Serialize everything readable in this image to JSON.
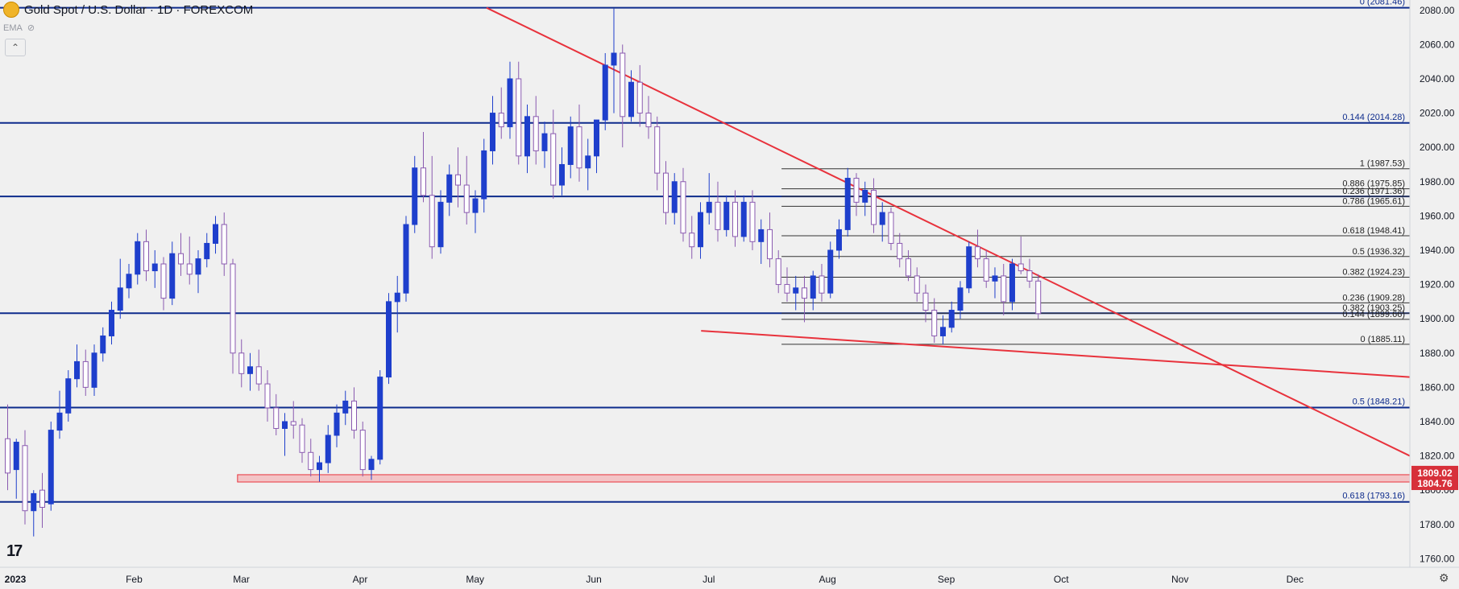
{
  "header": {
    "title": "Gold Spot / U.S. Dollar · 1D · FOREXCOM",
    "indicator": "EMA",
    "collapse_icon": "chevron-up-icon"
  },
  "colors": {
    "background": "#f0f0f0",
    "level_line": "#0d2b8c",
    "fib_line": "#333333",
    "trend_line": "#e8323c",
    "candle_up": "#1e3fcc",
    "candle_down": "#8a5ab0",
    "zone_fill": "#f4b9bb",
    "price_tag": "#d7303a"
  },
  "chart_data": {
    "type": "candlestick",
    "symbol": "XAU/USD",
    "interval": "1D",
    "ylim": [
      1755,
      2086
    ],
    "y_ticks": [
      1760,
      1780,
      1800,
      1820,
      1840,
      1860,
      1880,
      1900,
      1920,
      1940,
      1960,
      1980,
      2000,
      2020,
      2040,
      2060,
      2080
    ],
    "y_tick_labels": [
      "1760.00",
      "1780.00",
      "1800.00",
      "1820.00",
      "1840.00",
      "1860.00",
      "1880.00",
      "1900.00",
      "1920.00",
      "1940.00",
      "1960.00",
      "1980.00",
      "2000.00",
      "2020.00",
      "2040.00",
      "2060.00",
      "2080.00"
    ],
    "x_ticks": [
      {
        "label": "2023",
        "date": "2023-01-01"
      },
      {
        "label": "Feb",
        "date": "2023-02-01"
      },
      {
        "label": "Mar",
        "date": "2023-03-01"
      },
      {
        "label": "Apr",
        "date": "2023-04-01"
      },
      {
        "label": "May",
        "date": "2023-05-01"
      },
      {
        "label": "Jun",
        "date": "2023-06-01"
      },
      {
        "label": "Jul",
        "date": "2023-07-01"
      },
      {
        "label": "Aug",
        "date": "2023-08-01"
      },
      {
        "label": "Sep",
        "date": "2023-09-01"
      },
      {
        "label": "Oct",
        "date": "2023-10-01"
      },
      {
        "label": "Nov",
        "date": "2023-11-01"
      },
      {
        "label": "Dec",
        "date": "2023-12-01"
      }
    ],
    "x_range": [
      "2022-12-28",
      "2023-12-31"
    ],
    "long_fib_levels": [
      {
        "label": "0 (2081.46)",
        "value": 2081.46
      },
      {
        "label": "0.144 (2014.28)",
        "value": 2014.28
      },
      {
        "label": "0.5 (1848.21)",
        "value": 1848.21
      },
      {
        "label": "0.618 (1793.16)",
        "value": 1793.16
      }
    ],
    "unlabeled_levels": [
      1971.36,
      1903.25
    ],
    "short_fib": {
      "start_date": "2023-07-20",
      "levels": [
        {
          "label": "1 (1987.53)",
          "value": 1987.53
        },
        {
          "label": "0.886 (1975.85)",
          "value": 1975.85
        },
        {
          "label": "0.236 (1971.36)",
          "value": 1971.36
        },
        {
          "label": "0.786 (1965.61)",
          "value": 1965.61
        },
        {
          "label": "0.618 (1948.41)",
          "value": 1948.41
        },
        {
          "label": "0.5 (1936.32)",
          "value": 1936.32
        },
        {
          "label": "0.382 (1924.23)",
          "value": 1924.23
        },
        {
          "label": "0.236 (1909.28)",
          "value": 1909.28
        },
        {
          "label": "0.382 (1903.25)",
          "value": 1903.25
        },
        {
          "label": "0.144 (1899.66)",
          "value": 1899.66
        },
        {
          "label": "0 (1885.11)",
          "value": 1885.11
        }
      ]
    },
    "zone": {
      "start_date": "2023-02-28",
      "top": 1809.02,
      "bottom": 1804.76
    },
    "price_tags": [
      {
        "label": "1809.02",
        "value": 1809.02
      },
      {
        "label": "1804.76",
        "value": 1804.76
      }
    ],
    "trendlines": [
      {
        "from": {
          "date": "2023-05-04",
          "value": 2081.46
        },
        "to": {
          "date": "2023-12-31",
          "value": 1820
        }
      },
      {
        "from": {
          "date": "2023-06-29",
          "value": 1893
        },
        "to": {
          "date": "2023-12-31",
          "value": 1866
        }
      }
    ],
    "candles": [
      [
        1830,
        1850,
        1800,
        1810
      ],
      [
        1812,
        1830,
        1795,
        1828
      ],
      [
        1826,
        1835,
        1780,
        1788
      ],
      [
        1788,
        1800,
        1773,
        1798
      ],
      [
        1800,
        1810,
        1778,
        1790
      ],
      [
        1792,
        1840,
        1788,
        1835
      ],
      [
        1835,
        1858,
        1830,
        1845
      ],
      [
        1845,
        1870,
        1840,
        1865
      ],
      [
        1865,
        1885,
        1860,
        1875
      ],
      [
        1875,
        1882,
        1855,
        1860
      ],
      [
        1860,
        1885,
        1855,
        1880
      ],
      [
        1880,
        1895,
        1875,
        1890
      ],
      [
        1890,
        1910,
        1885,
        1905
      ],
      [
        1905,
        1935,
        1900,
        1918
      ],
      [
        1918,
        1932,
        1912,
        1926
      ],
      [
        1926,
        1950,
        1920,
        1945
      ],
      [
        1945,
        1952,
        1922,
        1928
      ],
      [
        1928,
        1940,
        1918,
        1932
      ],
      [
        1932,
        1936,
        1905,
        1912
      ],
      [
        1912,
        1945,
        1908,
        1938
      ],
      [
        1938,
        1950,
        1925,
        1932
      ],
      [
        1932,
        1948,
        1920,
        1926
      ],
      [
        1926,
        1940,
        1915,
        1935
      ],
      [
        1935,
        1950,
        1930,
        1944
      ],
      [
        1944,
        1960,
        1938,
        1955
      ],
      [
        1955,
        1962,
        1925,
        1932
      ],
      [
        1932,
        1935,
        1868,
        1880
      ],
      [
        1880,
        1888,
        1860,
        1868
      ],
      [
        1868,
        1880,
        1858,
        1872
      ],
      [
        1872,
        1882,
        1858,
        1862
      ],
      [
        1862,
        1870,
        1840,
        1848
      ],
      [
        1848,
        1856,
        1832,
        1836
      ],
      [
        1836,
        1845,
        1820,
        1840
      ],
      [
        1840,
        1852,
        1830,
        1838
      ],
      [
        1838,
        1842,
        1816,
        1822
      ],
      [
        1822,
        1830,
        1808,
        1812
      ],
      [
        1812,
        1820,
        1805,
        1816
      ],
      [
        1816,
        1838,
        1810,
        1832
      ],
      [
        1832,
        1850,
        1825,
        1845
      ],
      [
        1845,
        1858,
        1838,
        1852
      ],
      [
        1852,
        1860,
        1830,
        1835
      ],
      [
        1835,
        1840,
        1808,
        1812
      ],
      [
        1812,
        1820,
        1806,
        1818
      ],
      [
        1818,
        1870,
        1815,
        1866
      ],
      [
        1866,
        1915,
        1862,
        1910
      ],
      [
        1910,
        1925,
        1892,
        1915
      ],
      [
        1915,
        1960,
        1910,
        1955
      ],
      [
        1955,
        1995,
        1950,
        1988
      ],
      [
        1988,
        2009,
        1968,
        1972
      ],
      [
        1972,
        1995,
        1935,
        1942
      ],
      [
        1942,
        1975,
        1938,
        1968
      ],
      [
        1968,
        1990,
        1960,
        1984
      ],
      [
        1984,
        2000,
        1965,
        1978
      ],
      [
        1978,
        1995,
        1955,
        1962
      ],
      [
        1962,
        1975,
        1950,
        1970
      ],
      [
        1970,
        2005,
        1962,
        1998
      ],
      [
        1998,
        2030,
        1990,
        2020
      ],
      [
        2020,
        2035,
        2005,
        2012
      ],
      [
        2012,
        2050,
        2005,
        2040
      ],
      [
        2040,
        2050,
        1990,
        1995
      ],
      [
        1995,
        2025,
        1985,
        2018
      ],
      [
        2018,
        2030,
        1990,
        1998
      ],
      [
        1998,
        2015,
        1988,
        2008
      ],
      [
        2008,
        2022,
        1970,
        1978
      ],
      [
        1978,
        2000,
        1972,
        1990
      ],
      [
        1990,
        2018,
        1982,
        2012
      ],
      [
        2012,
        2025,
        1980,
        1988
      ],
      [
        1988,
        2005,
        1975,
        1995
      ],
      [
        1995,
        2015,
        1985,
        2016
      ],
      [
        2016,
        2055,
        2010,
        2048
      ],
      [
        2048,
        2081,
        2020,
        2055
      ],
      [
        2055,
        2060,
        2000,
        2018
      ],
      [
        2018,
        2045,
        2015,
        2038
      ],
      [
        2038,
        2048,
        2012,
        2020
      ],
      [
        2020,
        2030,
        2005,
        2012
      ],
      [
        2012,
        2018,
        1975,
        1985
      ],
      [
        1985,
        1992,
        1955,
        1962
      ],
      [
        1962,
        1985,
        1955,
        1980
      ],
      [
        1980,
        1988,
        1945,
        1950
      ],
      [
        1950,
        1960,
        1935,
        1942
      ],
      [
        1942,
        1968,
        1935,
        1962
      ],
      [
        1962,
        1985,
        1955,
        1968
      ],
      [
        1968,
        1980,
        1945,
        1952
      ],
      [
        1952,
        1972,
        1948,
        1968
      ],
      [
        1968,
        1975,
        1942,
        1948
      ],
      [
        1948,
        1972,
        1945,
        1968
      ],
      [
        1968,
        1975,
        1940,
        1945
      ],
      [
        1945,
        1958,
        1932,
        1952
      ],
      [
        1952,
        1962,
        1930,
        1935
      ],
      [
        1935,
        1940,
        1915,
        1920
      ],
      [
        1920,
        1930,
        1910,
        1915
      ],
      [
        1915,
        1925,
        1905,
        1918
      ],
      [
        1918,
        1925,
        1898,
        1912
      ],
      [
        1912,
        1928,
        1905,
        1925
      ],
      [
        1925,
        1932,
        1910,
        1915
      ],
      [
        1915,
        1945,
        1912,
        1940
      ],
      [
        1940,
        1958,
        1935,
        1952
      ],
      [
        1952,
        1988,
        1948,
        1982
      ],
      [
        1982,
        1985,
        1960,
        1968
      ],
      [
        1968,
        1980,
        1960,
        1975
      ],
      [
        1975,
        1982,
        1950,
        1955
      ],
      [
        1955,
        1968,
        1945,
        1962
      ],
      [
        1962,
        1965,
        1940,
        1944
      ],
      [
        1944,
        1950,
        1930,
        1935
      ],
      [
        1935,
        1940,
        1922,
        1925
      ],
      [
        1925,
        1930,
        1910,
        1915
      ],
      [
        1915,
        1920,
        1898,
        1905
      ],
      [
        1905,
        1912,
        1886,
        1890
      ],
      [
        1890,
        1902,
        1885,
        1895
      ],
      [
        1895,
        1910,
        1892,
        1905
      ],
      [
        1905,
        1922,
        1900,
        1918
      ],
      [
        1918,
        1945,
        1915,
        1942
      ],
      [
        1942,
        1952,
        1930,
        1935
      ],
      [
        1935,
        1940,
        1918,
        1922
      ],
      [
        1922,
        1930,
        1912,
        1925
      ],
      [
        1925,
        1932,
        1902,
        1910
      ],
      [
        1910,
        1935,
        1905,
        1932
      ],
      [
        1932,
        1948,
        1926,
        1928
      ],
      [
        1928,
        1935,
        1918,
        1922
      ],
      [
        1922,
        1926,
        1900,
        1903
      ]
    ]
  }
}
